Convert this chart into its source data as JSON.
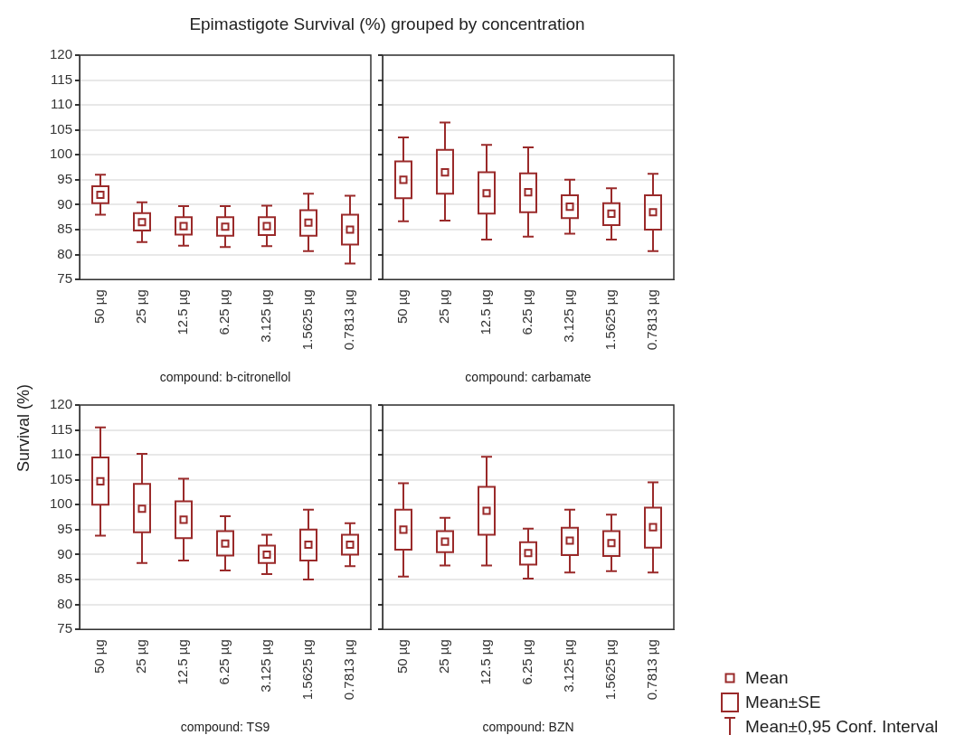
{
  "chart_data": [
    {
      "type": "box",
      "title": "Epimastigote Survival (%) grouped by concentration",
      "xlabel": "compound: b-citronellol",
      "categories": [
        "50 µg",
        "25 µg",
        "12.5 µg",
        "6.25 µg",
        "3.125 µg",
        "1.5625 µg",
        "0.7813 µg"
      ],
      "color": "#9a2a2a",
      "marker": "square",
      "grid": "y",
      "ylim": [
        75,
        120
      ],
      "yticks": [
        75,
        80,
        85,
        90,
        95,
        100,
        105,
        110,
        115,
        120
      ],
      "boxes": [
        {
          "low": 88,
          "q1": 90.3,
          "median": 92,
          "q3": 93.7,
          "high": 96
        },
        {
          "low": 82.5,
          "q1": 84.8,
          "median": 86.5,
          "q3": 88.3,
          "high": 90.5
        },
        {
          "low": 81.8,
          "q1": 84,
          "median": 85.7,
          "q3": 87.5,
          "high": 89.7
        },
        {
          "low": 81.5,
          "q1": 83.8,
          "median": 85.6,
          "q3": 87.5,
          "high": 89.7
        },
        {
          "low": 81.7,
          "q1": 83.9,
          "median": 85.7,
          "q3": 87.5,
          "high": 89.8
        },
        {
          "low": 80.7,
          "q1": 83.8,
          "median": 86.4,
          "q3": 88.9,
          "high": 92.2
        },
        {
          "low": 78.2,
          "q1": 82,
          "median": 85,
          "q3": 88,
          "high": 91.8
        }
      ]
    },
    {
      "type": "box",
      "xlabel": "compound: carbamate",
      "categories": [
        "50 µg",
        "25 µg",
        "12.5 µg",
        "6.25 µg",
        "3.125 µg",
        "1.5625 µg",
        "0.7813 µg"
      ],
      "color": "#9a2a2a",
      "marker": "square",
      "grid": "y",
      "tick_labels": "x",
      "ylim": [
        75,
        120
      ],
      "yticks": [
        75,
        80,
        85,
        90,
        95,
        100,
        105,
        110,
        115,
        120
      ],
      "boxes": [
        {
          "low": 86.7,
          "q1": 91.3,
          "median": 95,
          "q3": 98.7,
          "high": 103.5
        },
        {
          "low": 86.8,
          "q1": 92.2,
          "median": 96.5,
          "q3": 101,
          "high": 106.5
        },
        {
          "low": 83,
          "q1": 88.2,
          "median": 92.3,
          "q3": 96.5,
          "high": 102
        },
        {
          "low": 83.6,
          "q1": 88.5,
          "median": 92.5,
          "q3": 96.3,
          "high": 101.5
        },
        {
          "low": 84.2,
          "q1": 87.3,
          "median": 89.6,
          "q3": 91.9,
          "high": 95
        },
        {
          "low": 83,
          "q1": 85.9,
          "median": 88.2,
          "q3": 90.3,
          "high": 93.3
        },
        {
          "low": 80.7,
          "q1": 85,
          "median": 88.5,
          "q3": 91.9,
          "high": 96.2
        }
      ]
    },
    {
      "type": "box",
      "ylabel": "Survival (%)",
      "xlabel": "compound: TS9",
      "categories": [
        "50 µg",
        "25 µg",
        "12.5 µg",
        "6.25 µg",
        "3.125 µg",
        "1.5625 µg",
        "0.7813 µg"
      ],
      "color": "#9a2a2a",
      "marker": "square",
      "grid": "y",
      "ylim": [
        75,
        120
      ],
      "yticks": [
        75,
        80,
        85,
        90,
        95,
        100,
        105,
        110,
        115,
        120
      ],
      "boxes": [
        {
          "low": 93.8,
          "q1": 100,
          "median": 104.7,
          "q3": 109.5,
          "high": 115.5
        },
        {
          "low": 88.3,
          "q1": 94.5,
          "median": 99.2,
          "q3": 104.2,
          "high": 110.2
        },
        {
          "low": 88.8,
          "q1": 93.3,
          "median": 97,
          "q3": 100.7,
          "high": 105.2
        },
        {
          "low": 86.8,
          "q1": 89.8,
          "median": 92.2,
          "q3": 94.7,
          "high": 97.7
        },
        {
          "low": 86.1,
          "q1": 88.3,
          "median": 90,
          "q3": 91.8,
          "high": 94
        },
        {
          "low": 85,
          "q1": 88.8,
          "median": 92,
          "q3": 95,
          "high": 99
        },
        {
          "low": 87.7,
          "q1": 90,
          "median": 92,
          "q3": 94,
          "high": 96.3
        }
      ]
    },
    {
      "type": "box",
      "xlabel": "compound: BZN",
      "categories": [
        "50 µg",
        "25 µg",
        "12.5 µg",
        "6.25 µg",
        "3.125 µg",
        "1.5625 µg",
        "0.7813 µg"
      ],
      "color": "#9a2a2a",
      "marker": "square",
      "grid": "y",
      "tick_labels": "x",
      "ylim": [
        75,
        120
      ],
      "yticks": [
        75,
        80,
        85,
        90,
        95,
        100,
        105,
        110,
        115,
        120
      ],
      "annotations": [
        "Mean",
        "Mean±SE",
        "Mean±0,95 Conf. Interval"
      ],
      "boxes": [
        {
          "low": 85.6,
          "q1": 91,
          "median": 95,
          "q3": 99,
          "high": 104.3
        },
        {
          "low": 87.8,
          "q1": 90.5,
          "median": 92.6,
          "q3": 94.7,
          "high": 97.4
        },
        {
          "low": 87.8,
          "q1": 94,
          "median": 98.8,
          "q3": 103.6,
          "high": 109.6
        },
        {
          "low": 85.2,
          "q1": 88,
          "median": 90.3,
          "q3": 92.5,
          "high": 95.2
        },
        {
          "low": 86.4,
          "q1": 89.9,
          "median": 92.8,
          "q3": 95.4,
          "high": 99
        },
        {
          "low": 86.7,
          "q1": 89.7,
          "median": 92.3,
          "q3": 94.7,
          "high": 98
        },
        {
          "low": 86.4,
          "q1": 91.4,
          "median": 95.5,
          "q3": 99.4,
          "high": 104.5
        }
      ]
    }
  ]
}
